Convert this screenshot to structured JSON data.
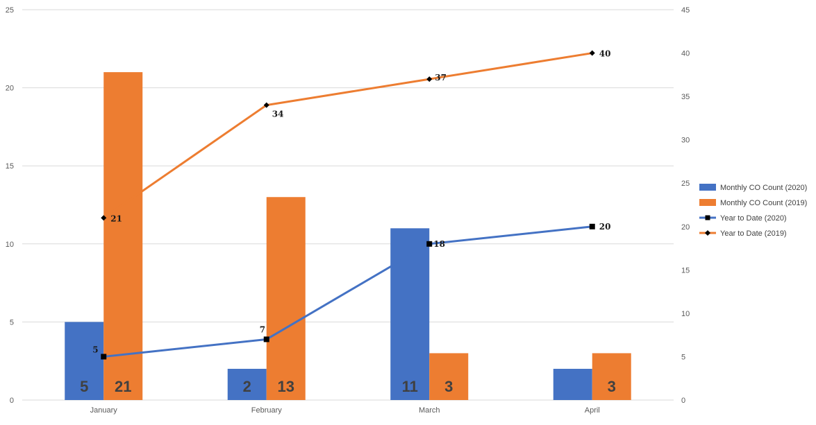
{
  "chart_data": {
    "type": "bar",
    "categories": [
      "January",
      "February",
      "March",
      "April"
    ],
    "ylim": [
      0,
      25
    ],
    "yticks": [
      0,
      5,
      10,
      15,
      20,
      25
    ],
    "y2lim": [
      0,
      45
    ],
    "y2ticks": [
      0,
      5,
      10,
      15,
      20,
      25,
      30,
      35,
      40,
      45
    ],
    "grid": true,
    "legend_position": "right",
    "bar_series": [
      {
        "name": "Monthly CO Count (2020)",
        "color": "#4472C4",
        "values": [
          5,
          2,
          11,
          2
        ],
        "labels": [
          "5",
          "2",
          "11",
          ""
        ]
      },
      {
        "name": "Monthly CO Count (2019)",
        "color": "#ED7D31",
        "values": [
          21,
          13,
          3,
          3
        ],
        "labels": [
          "21",
          "13",
          "3",
          "3"
        ]
      }
    ],
    "line_series": [
      {
        "name": "Year to Date (2020)",
        "color": "#4472C4",
        "marker": "square",
        "axis": "right",
        "values": [
          5,
          7,
          18,
          20
        ],
        "labels": [
          "5",
          "7",
          "18",
          "20"
        ]
      },
      {
        "name": "Year to Date (2019)",
        "color": "#ED7D31",
        "marker": "diamond",
        "axis": "right",
        "values": [
          21,
          34,
          37,
          40
        ],
        "labels": [
          "21",
          "34",
          "37",
          "40"
        ]
      }
    ]
  }
}
